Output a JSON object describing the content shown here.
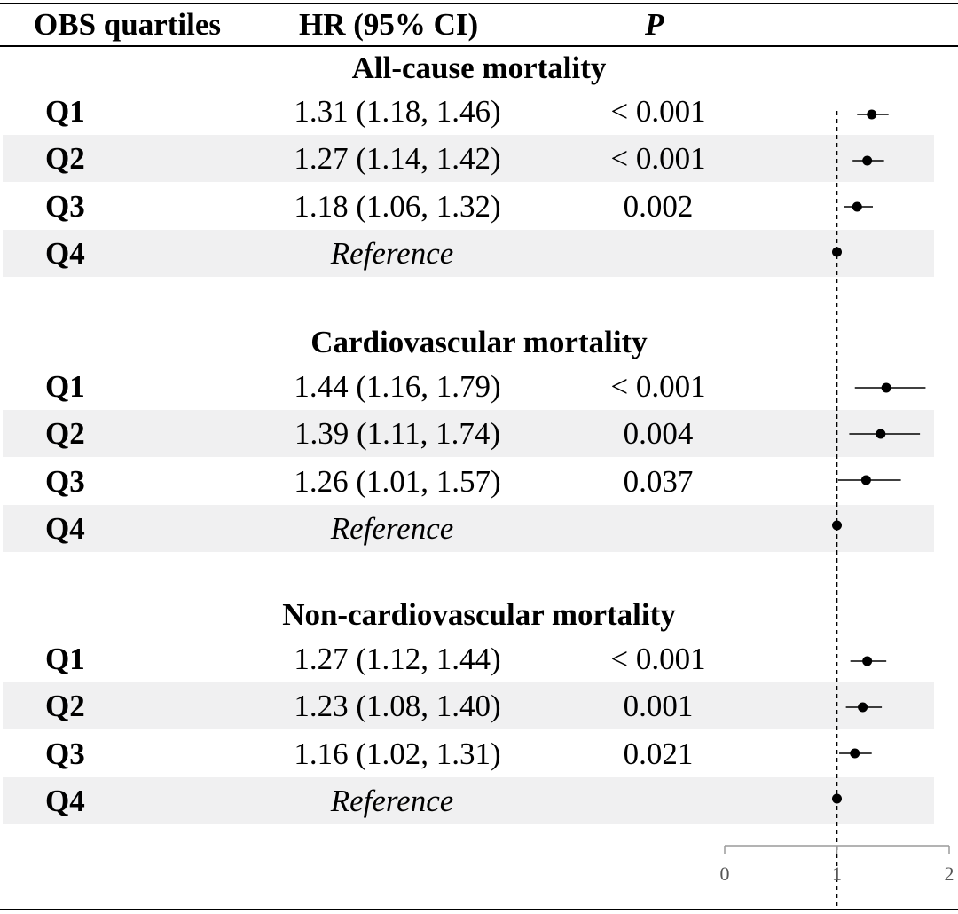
{
  "table": {
    "col_label": "OBS quartiles",
    "col_hr": "HR (95% CI)",
    "col_p": "P"
  },
  "sections": [
    {
      "title": "All-cause mortality",
      "rows": [
        {
          "label": "Q1",
          "hr_text": "1.31 (1.18, 1.46)",
          "p": "< 0.001"
        },
        {
          "label": "Q2",
          "hr_text": "1.27 (1.14, 1.42)",
          "p": "< 0.001"
        },
        {
          "label": "Q3",
          "hr_text": "1.18 (1.06, 1.32)",
          "p": "0.002"
        },
        {
          "label": "Q4",
          "hr_text": "Reference",
          "p": ""
        }
      ]
    },
    {
      "title": "Cardiovascular mortality",
      "rows": [
        {
          "label": "Q1",
          "hr_text": "1.44 (1.16, 1.79)",
          "p": "< 0.001"
        },
        {
          "label": "Q2",
          "hr_text": "1.39 (1.11, 1.74)",
          "p": "0.004"
        },
        {
          "label": "Q3",
          "hr_text": "1.26 (1.01, 1.57)",
          "p": "0.037"
        },
        {
          "label": "Q4",
          "hr_text": "Reference",
          "p": ""
        }
      ]
    },
    {
      "title": "Non-cardiovascular mortality",
      "rows": [
        {
          "label": "Q1",
          "hr_text": "1.27 (1.12, 1.44)",
          "p": "< 0.001"
        },
        {
          "label": "Q2",
          "hr_text": "1.23 (1.08, 1.40)",
          "p": "0.001"
        },
        {
          "label": "Q3",
          "hr_text": "1.16 (1.02, 1.31)",
          "p": "0.021"
        },
        {
          "label": "Q4",
          "hr_text": "Reference",
          "p": ""
        }
      ]
    }
  ],
  "chart_data": {
    "type": "forest",
    "title": "",
    "xlabel": "",
    "xlim": [
      0,
      2
    ],
    "x_ticks": [
      0,
      1,
      2
    ],
    "x_tick_labels": [
      "0",
      "1",
      "2"
    ],
    "reference_line": 1,
    "series": [
      {
        "name": "All-cause mortality",
        "categories": [
          "Q1",
          "Q2",
          "Q3",
          "Q4"
        ],
        "hr": [
          1.31,
          1.27,
          1.18,
          1.0
        ],
        "lower": [
          1.18,
          1.14,
          1.06,
          1.0
        ],
        "upper": [
          1.46,
          1.42,
          1.32,
          1.0
        ]
      },
      {
        "name": "Cardiovascular mortality",
        "categories": [
          "Q1",
          "Q2",
          "Q3",
          "Q4"
        ],
        "hr": [
          1.44,
          1.39,
          1.26,
          1.0
        ],
        "lower": [
          1.16,
          1.11,
          1.01,
          1.0
        ],
        "upper": [
          1.79,
          1.74,
          1.57,
          1.0
        ]
      },
      {
        "name": "Non-cardiovascular mortality",
        "categories": [
          "Q1",
          "Q2",
          "Q3",
          "Q4"
        ],
        "hr": [
          1.27,
          1.23,
          1.16,
          1.0
        ],
        "lower": [
          1.12,
          1.08,
          1.02,
          1.0
        ],
        "upper": [
          1.44,
          1.4,
          1.31,
          1.0
        ]
      }
    ]
  }
}
